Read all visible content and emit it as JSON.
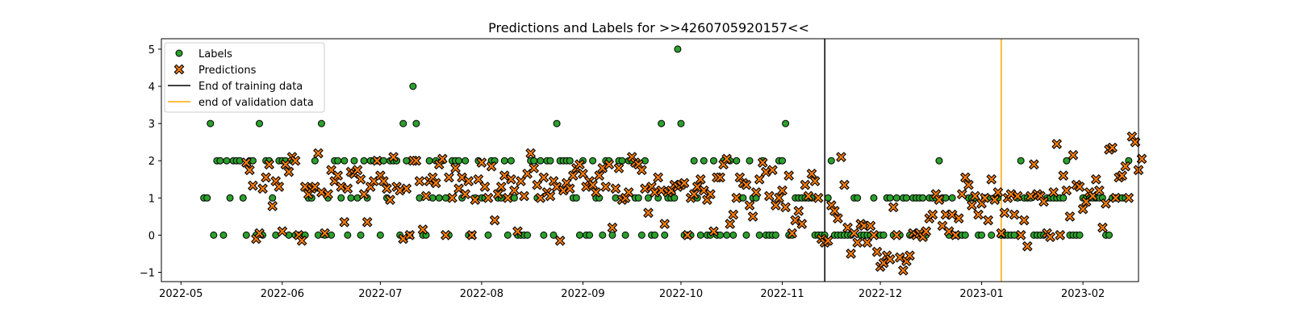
{
  "chart_data": {
    "type": "scatter",
    "title": "Predictions and Labels for >>4260705920157<<",
    "xlabel": "",
    "ylabel": "",
    "x_type": "date",
    "x_range": [
      "2022-04-25",
      "2023-02-18"
    ],
    "ylim": [
      -1.25,
      5.28
    ],
    "grid": false,
    "legend_position": "upper left",
    "x_ticks": [
      {
        "date": "2022-05-01",
        "label": "2022-05"
      },
      {
        "date": "2022-06-01",
        "label": "2022-06"
      },
      {
        "date": "2022-07-01",
        "label": "2022-07"
      },
      {
        "date": "2022-08-01",
        "label": "2022-08"
      },
      {
        "date": "2022-09-01",
        "label": "2022-09"
      },
      {
        "date": "2022-10-01",
        "label": "2022-10"
      },
      {
        "date": "2022-11-01",
        "label": "2022-11"
      },
      {
        "date": "2022-12-01",
        "label": "2022-12"
      },
      {
        "date": "2023-01-01",
        "label": "2023-01"
      },
      {
        "date": "2023-02-01",
        "label": "2023-02"
      }
    ],
    "y_ticks": [
      {
        "value": -1,
        "label": "−1"
      },
      {
        "value": 0,
        "label": "0"
      },
      {
        "value": 1,
        "label": "1"
      },
      {
        "value": 2,
        "label": "2"
      },
      {
        "value": 3,
        "label": "3"
      },
      {
        "value": 4,
        "label": "4"
      },
      {
        "value": 5,
        "label": "5"
      }
    ],
    "vlines": [
      {
        "name": "End of training data",
        "date": "2022-11-14",
        "color": "#000000"
      },
      {
        "name": "end of validation data",
        "date": "2023-01-07",
        "color": "#ffa500"
      }
    ],
    "series": [
      {
        "name": "Labels",
        "marker": "circle",
        "color": "#2ca02c",
        "edge": "#000000",
        "start_date": "2022-05-08",
        "values": [
          1,
          1,
          3,
          0,
          2,
          2,
          0,
          2,
          1,
          2,
          2,
          2,
          1,
          0,
          2,
          2,
          0,
          3,
          0,
          2,
          2,
          1,
          0,
          2,
          2,
          2,
          0,
          2,
          0,
          0,
          0,
          0,
          1,
          1,
          2,
          0,
          3,
          0,
          1,
          0,
          2,
          2,
          1,
          2,
          0,
          1,
          2,
          1,
          0,
          2,
          1,
          2,
          2,
          2,
          0,
          2,
          1,
          2,
          2,
          2,
          0,
          3,
          2,
          0,
          4,
          3,
          1,
          0,
          0,
          2,
          1,
          2,
          1,
          2,
          1,
          0,
          2,
          2,
          2,
          1,
          2,
          0,
          0,
          1,
          2,
          1,
          1,
          0,
          2,
          2,
          1,
          1,
          2,
          0,
          2,
          1,
          0,
          0,
          0,
          0,
          2,
          2,
          1,
          2,
          0,
          2,
          2,
          0,
          3,
          2,
          2,
          2,
          2,
          1,
          1,
          0,
          2,
          0,
          0,
          2,
          1,
          1,
          0,
          2,
          2,
          0,
          1,
          2,
          2,
          0,
          2,
          2,
          1,
          1,
          0,
          2,
          1,
          0,
          0,
          1,
          3,
          0,
          1,
          1,
          1,
          5,
          3,
          0,
          0,
          0,
          2,
          1,
          0,
          2,
          0,
          0,
          2,
          0,
          0,
          2,
          0,
          2,
          0,
          2,
          1,
          1,
          0,
          2,
          1,
          1,
          0,
          2,
          0,
          0,
          0,
          0,
          2,
          2,
          3,
          0,
          0,
          1,
          1,
          1,
          1,
          1,
          1,
          0,
          0,
          0,
          0,
          1,
          2,
          0,
          0,
          0,
          0,
          0,
          0,
          1,
          1,
          0,
          0,
          0,
          0,
          1,
          0,
          0,
          0,
          1,
          1,
          0,
          1,
          0,
          1,
          1,
          0,
          1,
          1,
          1,
          1,
          0,
          1,
          1,
          1,
          2,
          1,
          1,
          0,
          1,
          0,
          0,
          0,
          0,
          1,
          1,
          1,
          0,
          0,
          1,
          1,
          0,
          1,
          1,
          0,
          0,
          0,
          0,
          0,
          1,
          2,
          1,
          1,
          1,
          0,
          0,
          0,
          0,
          1,
          1,
          1,
          1,
          1,
          1,
          2,
          0,
          0,
          0,
          0,
          1,
          1,
          1,
          1,
          1,
          1,
          1,
          0,
          0,
          1,
          1,
          1,
          1,
          1,
          2
        ]
      },
      {
        "name": "Predictions",
        "marker": "x",
        "color": "#ff7f0e",
        "edge": "#000000",
        "start_date": "2022-05-21",
        "values": [
          1.95,
          1.75,
          1.33,
          -0.1,
          0.05,
          1.25,
          1.55,
          1.9,
          0.78,
          1.45,
          1.3,
          0.1,
          1.9,
          1.7,
          2.1,
          2.0,
          0.0,
          -0.15,
          1.3,
          1.1,
          1.25,
          1.3,
          2.2,
          1.15,
          0.05,
          1.1,
          1.75,
          1.45,
          1.6,
          1.3,
          0.35,
          1.25,
          1.7,
          1.65,
          1.75,
          1.5,
          1.1,
          0.35,
          1.3,
          1.45,
          2.0,
          1.6,
          1.45,
          1.25,
          0.95,
          2.1,
          1.3,
          1.2,
          -0.1,
          1.25,
          0.0,
          2.0,
          2.0,
          1.45,
          0.15,
          1.05,
          1.45,
          1.55,
          1.4,
          1.9,
          2.05,
          0.0,
          1.55,
          1.0,
          1.8,
          1.25,
          1.55,
          1.1,
          1.45,
          0.0,
          0.95,
          1.5,
          1.95,
          1.3,
          1.0,
          1.85,
          0.4,
          1.1,
          1.3,
          1.6,
          1.0,
          1.5,
          1.2,
          0.1,
          1.45,
          1.05,
          1.65,
          2.2,
          1.8,
          1.35,
          1.0,
          1.55,
          1.15,
          1.05,
          1.45,
          1.3,
          -0.15,
          1.2,
          1.4,
          1.25,
          1.6,
          1.8,
          1.9,
          1.65,
          1.3,
          1.45,
          1.35,
          1.15,
          1.6,
          1.8,
          1.3,
          1.9,
          0.2,
          1.25,
          1.8,
          0.95,
          1.0,
          1.15,
          2.1,
          1.95,
          1.9,
          1.75,
          1.25,
          0.6,
          1.3,
          1.15,
          1.55,
          1.2,
          0.3,
          1.15,
          1.2,
          1.35,
          1.3,
          1.35,
          1.4,
          0.0,
          1.0,
          1.1,
          1.3,
          1.5,
          1.2,
          0.95,
          1.1,
          0.1,
          1.55,
          1.55,
          1.9,
          2.05,
          0.3,
          0.55,
          1.0,
          1.55,
          1.4,
          1.35,
          0.8,
          0.5,
          1.15,
          1.5,
          1.95,
          1.7,
          1.05,
          1.75,
          0.8,
          1.0,
          1.2,
          0.75,
          1.6,
          0.05,
          0.4,
          0.65,
          0.3,
          1.35,
          1.05,
          1.65,
          1.45,
          1.0,
          -0.1,
          -0.2,
          -0.15,
          0.8,
          0.65,
          0.45,
          2.1,
          1.35,
          0.2,
          -0.5,
          0.05,
          -0.2,
          0.3,
          0.25,
          -0.2,
          0.25,
          0.0,
          -0.45,
          -0.85,
          -0.75,
          -0.55,
          -0.65,
          0.75,
          0.0,
          -0.6,
          -0.95,
          -0.7,
          -0.55,
          0.05,
          0.0,
          0.05,
          -0.05,
          0.1,
          0.45,
          0.55,
          1.1,
          0.95,
          0.25,
          0.55,
          0.1,
          0.55,
          0.0,
          0.45,
          1.1,
          1.55,
          1.35,
          0.8,
          1.05,
          0.55,
          0.85,
          1.0,
          0.4,
          1.5,
          0.95,
          1.15,
          0.05,
          0.6,
          1.0,
          1.1,
          0.55,
          1.05,
          0.0,
          0.4,
          -0.3,
          1.05,
          1.9,
          1.1,
          1.05,
          0.9,
          0.05,
          -0.05,
          1.15,
          2.45,
          0.0,
          1.6,
          1.2,
          0.5,
          2.15,
          1.35,
          1.3,
          0.7,
          0.9,
          1.15,
          1.05,
          1.5,
          1.2,
          0.2,
          0.85,
          2.3,
          2.35,
          1.0,
          1.55,
          1.6,
          1.85,
          1.0,
          2.65,
          2.5,
          1.75,
          2.05
        ]
      }
    ],
    "legend": [
      {
        "label": "Labels",
        "kind": "circle",
        "color": "#2ca02c"
      },
      {
        "label": "Predictions",
        "kind": "x",
        "color": "#ff7f0e"
      },
      {
        "label": "End of training data",
        "kind": "line",
        "color": "#000000"
      },
      {
        "label": "end of validation data",
        "kind": "line",
        "color": "#ffa500"
      }
    ]
  }
}
